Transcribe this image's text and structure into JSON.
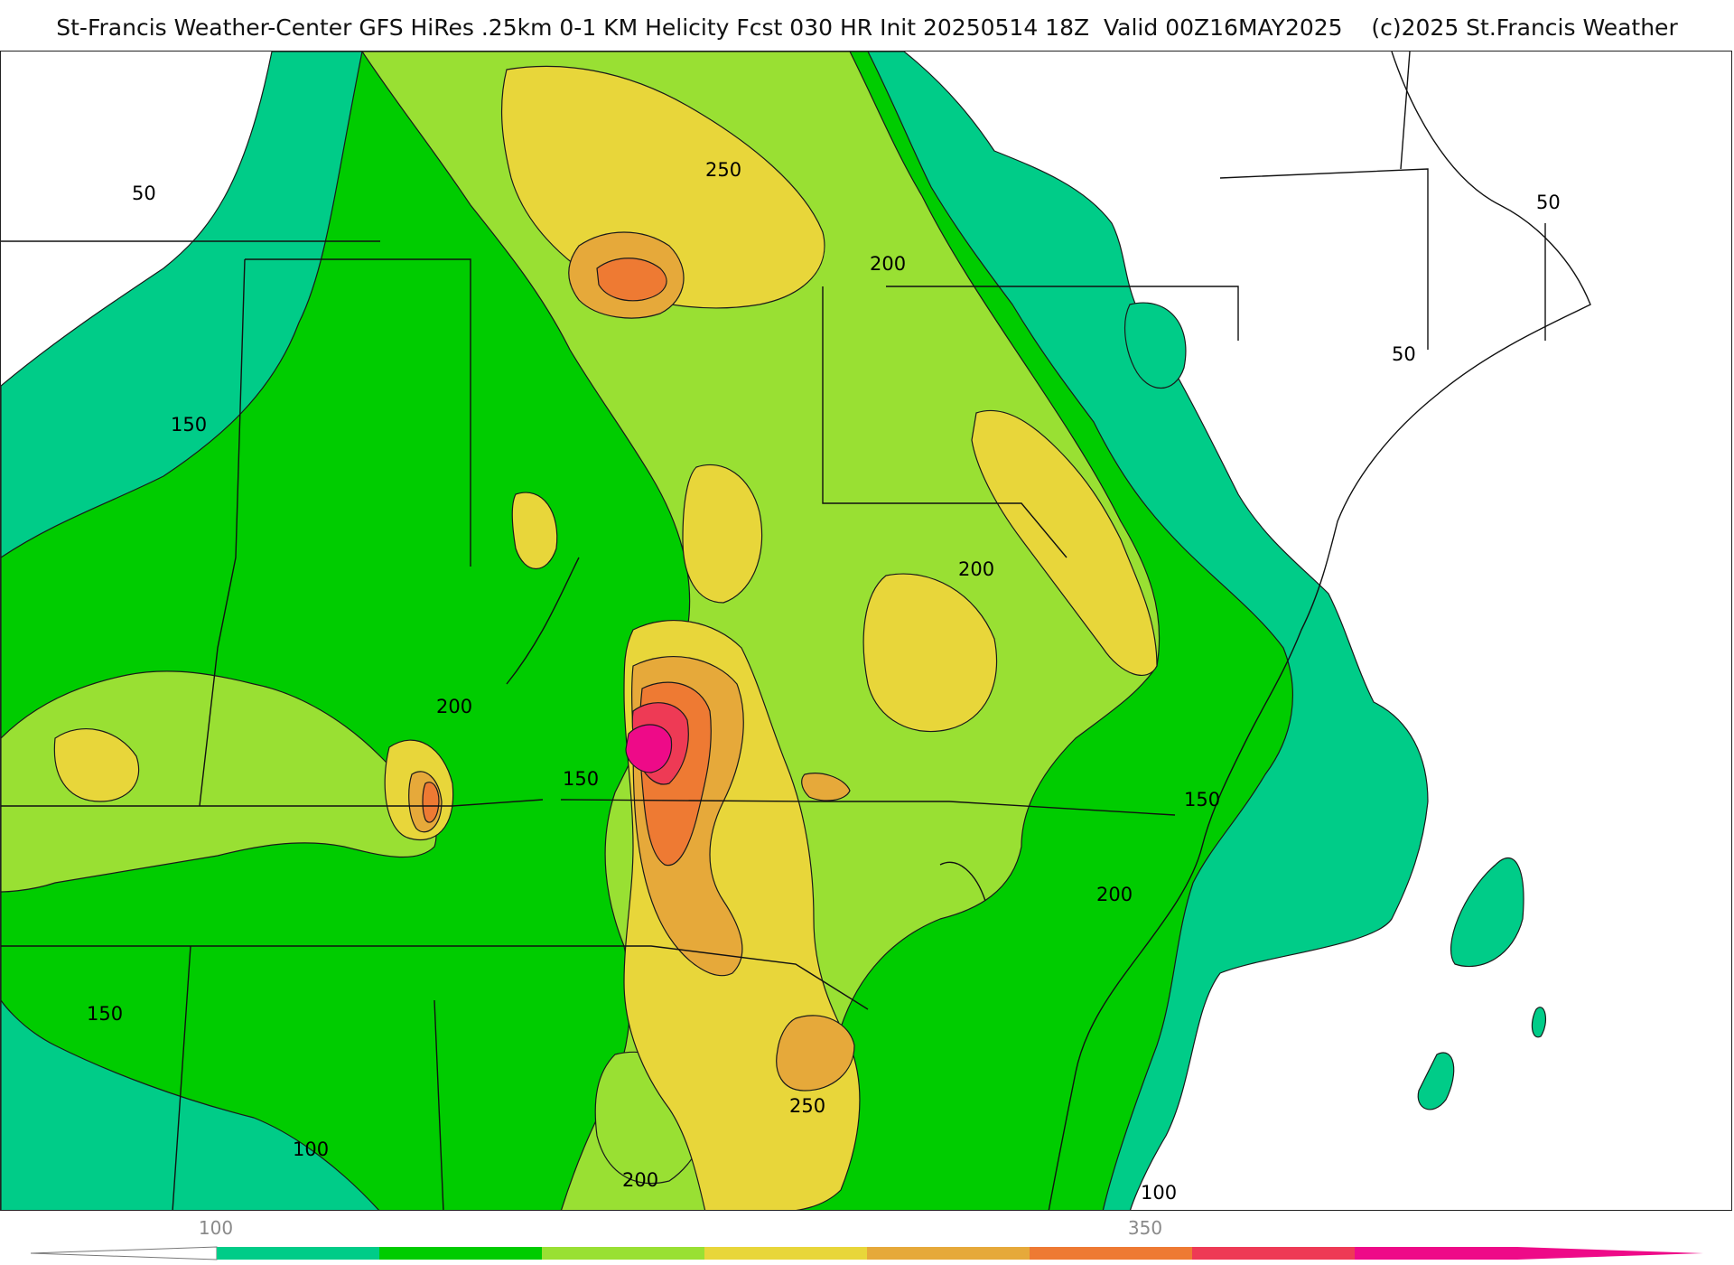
{
  "title": "St-Francis Weather-Center GFS HiRes .25km 0-1 KM Helicity Fcst 030 HR Init 20250514 18Z  Valid 00Z16MAY2025    (c)2025 St.Francis Weather",
  "contour_labels": [
    "50",
    "50",
    "50",
    "150",
    "150",
    "150",
    "150",
    "200",
    "200",
    "200",
    "200",
    "250",
    "250",
    "100",
    "100",
    "200"
  ],
  "colorbar": {
    "tick_labels": [
      "100",
      "350"
    ],
    "colors": [
      "#00cc88",
      "#00cc00",
      "#99e033",
      "#e8d63a",
      "#e6a93a",
      "#ee7a33",
      "#ee3a55",
      "#ee0a88"
    ]
  },
  "colors": {
    "level_50": "#00cc88",
    "level_100": "#00cc00",
    "level_150": "#99e033",
    "level_200": "#e8d63a",
    "level_250": "#e6a93a",
    "level_300": "#ee7a33",
    "level_350": "#ee3a55",
    "level_400": "#ee0a88"
  }
}
